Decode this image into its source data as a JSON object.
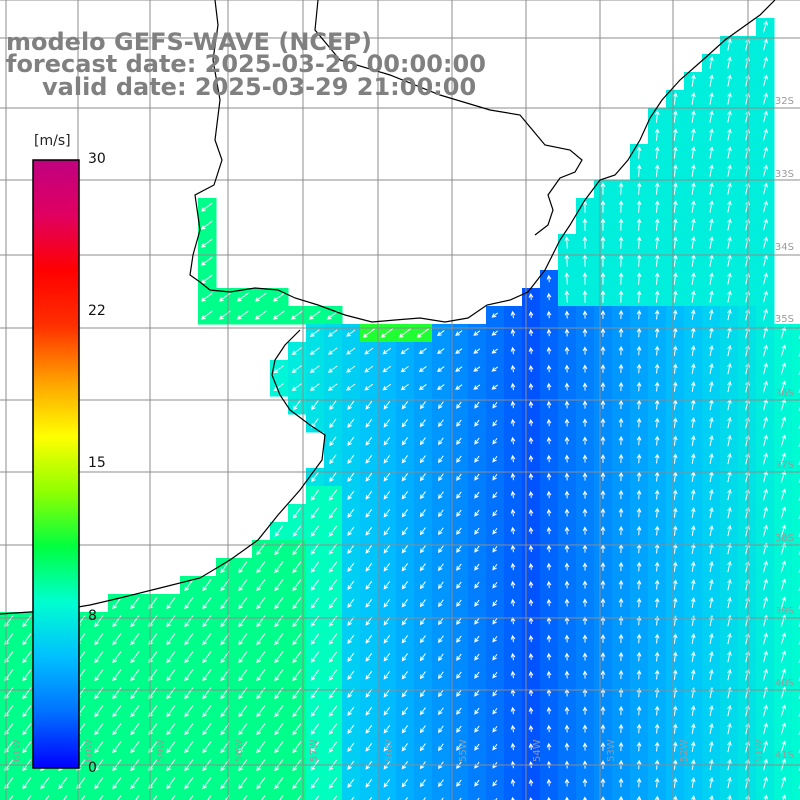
{
  "title": {
    "model": "modelo GEFS-WAVE (NCEP)",
    "forecast": "forecast date: 2025-03-26 00:00:00",
    "valid": "valid date: 2025-03-29 21:00:00"
  },
  "colorbar": {
    "units": "[m/s]",
    "ticks": [
      "30",
      "22",
      "15",
      "8",
      "0"
    ],
    "tick_values": [
      30,
      22,
      15,
      8,
      0
    ],
    "range": [
      0,
      30
    ],
    "colors": [
      "#0000ff",
      "#0070ff",
      "#00bfff",
      "#00ffd0",
      "#00ff40",
      "#90ff00",
      "#ffff00",
      "#ffa000",
      "#ff3000",
      "#ff0000",
      "#e00060",
      "#c00080"
    ]
  },
  "map": {
    "longitude_labels": [
      "61W",
      "60W",
      "59W",
      "58W",
      "57W",
      "56W",
      "55W",
      "54W",
      "53W",
      "52W",
      "51W"
    ],
    "latitude_labels": [
      "32S",
      "33S",
      "34S",
      "35S",
      "36S",
      "37S",
      "38S",
      "39S",
      "40S",
      "41S"
    ],
    "land_color": "#ffffff",
    "grid_color": "#8c8c8c",
    "coast_color": "#000000"
  }
}
